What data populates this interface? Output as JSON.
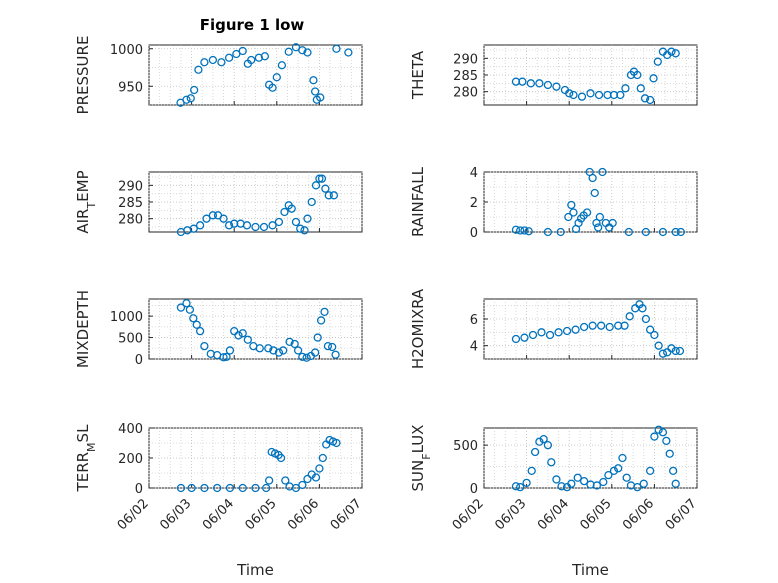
{
  "figure_title": "Figure 1 low",
  "chart_data": [
    {
      "type": "scatter",
      "ylabel": "PRESSURE",
      "ylabel_parts": [
        {
          "t": "PRESSURE"
        }
      ],
      "xlabel": "",
      "title": "Figure 1 low",
      "ylim": [
        925,
        1005
      ],
      "yticks": [
        950,
        1000
      ],
      "xlim": [
        0,
        5
      ],
      "xticks": [
        0,
        1,
        2,
        3,
        4,
        5
      ],
      "xticklabels": [
        "06/02",
        "06/03",
        "06/04",
        "06/05",
        "06/06",
        "06/07"
      ],
      "show_xticklabels": false,
      "color": "#0072bd",
      "points": [
        [
          0.74,
          928
        ],
        [
          0.88,
          932
        ],
        [
          0.98,
          934
        ],
        [
          1.06,
          945
        ],
        [
          1.16,
          972
        ],
        [
          1.3,
          982
        ],
        [
          1.5,
          985
        ],
        [
          1.7,
          982
        ],
        [
          1.88,
          988
        ],
        [
          2.05,
          993
        ],
        [
          2.2,
          997
        ],
        [
          2.32,
          980
        ],
        [
          2.4,
          985
        ],
        [
          2.58,
          988
        ],
        [
          2.72,
          990
        ],
        [
          2.82,
          952
        ],
        [
          2.9,
          948
        ],
        [
          3.0,
          962
        ],
        [
          3.12,
          978
        ],
        [
          3.28,
          996
        ],
        [
          3.45,
          1002
        ],
        [
          3.6,
          998
        ],
        [
          3.72,
          995
        ],
        [
          3.86,
          958
        ],
        [
          3.9,
          943
        ],
        [
          3.94,
          932
        ],
        [
          4.02,
          935
        ],
        [
          4.4,
          1000
        ],
        [
          4.68,
          995
        ]
      ]
    },
    {
      "type": "scatter",
      "ylabel": "THETA",
      "ylabel_parts": [
        {
          "t": "THETA"
        }
      ],
      "xlabel": "",
      "ylim": [
        276,
        294
      ],
      "yticks": [
        280,
        285,
        290
      ],
      "xlim": [
        0,
        5
      ],
      "xticks": [
        0,
        1,
        2,
        3,
        4,
        5
      ],
      "xticklabels": [
        "06/02",
        "06/03",
        "06/04",
        "06/05",
        "06/06",
        "06/07"
      ],
      "show_xticklabels": false,
      "color": "#0072bd",
      "points": [
        [
          0.75,
          283
        ],
        [
          0.9,
          283
        ],
        [
          1.1,
          282.5
        ],
        [
          1.3,
          282.5
        ],
        [
          1.5,
          282
        ],
        [
          1.7,
          281.5
        ],
        [
          1.9,
          280.5
        ],
        [
          2.0,
          279.5
        ],
        [
          2.1,
          279
        ],
        [
          2.3,
          278.5
        ],
        [
          2.5,
          279.5
        ],
        [
          2.7,
          279
        ],
        [
          2.9,
          279
        ],
        [
          3.05,
          279
        ],
        [
          3.2,
          279
        ],
        [
          3.32,
          281
        ],
        [
          3.45,
          285
        ],
        [
          3.52,
          286
        ],
        [
          3.6,
          285
        ],
        [
          3.68,
          281
        ],
        [
          3.78,
          278
        ],
        [
          3.9,
          277.5
        ],
        [
          3.98,
          284
        ],
        [
          4.08,
          289
        ],
        [
          4.2,
          292
        ],
        [
          4.3,
          291
        ],
        [
          4.4,
          292
        ],
        [
          4.5,
          291.5
        ]
      ]
    },
    {
      "type": "scatter",
      "ylabel": "AIR_TEMP",
      "ylabel_parts": [
        {
          "t": "AIR"
        },
        {
          "t": "T",
          "sub": true
        },
        {
          "t": "EMP"
        }
      ],
      "xlabel": "",
      "ylim": [
        276,
        294
      ],
      "yticks": [
        280,
        285,
        290
      ],
      "xlim": [
        0,
        5
      ],
      "xticks": [
        0,
        1,
        2,
        3,
        4,
        5
      ],
      "xticklabels": [
        "06/02",
        "06/03",
        "06/04",
        "06/05",
        "06/06",
        "06/07"
      ],
      "show_xticklabels": false,
      "color": "#0072bd",
      "points": [
        [
          0.75,
          276
        ],
        [
          0.9,
          276.5
        ],
        [
          1.05,
          277
        ],
        [
          1.2,
          278
        ],
        [
          1.35,
          280
        ],
        [
          1.5,
          281
        ],
        [
          1.62,
          281
        ],
        [
          1.75,
          280
        ],
        [
          1.88,
          278
        ],
        [
          2.0,
          278.5
        ],
        [
          2.15,
          278.5
        ],
        [
          2.3,
          278
        ],
        [
          2.5,
          277.5
        ],
        [
          2.7,
          277.5
        ],
        [
          2.9,
          278
        ],
        [
          3.05,
          279
        ],
        [
          3.18,
          282
        ],
        [
          3.28,
          284
        ],
        [
          3.35,
          283
        ],
        [
          3.45,
          279
        ],
        [
          3.55,
          277
        ],
        [
          3.65,
          276.5
        ],
        [
          3.72,
          280
        ],
        [
          3.82,
          285
        ],
        [
          3.92,
          290
        ],
        [
          4.0,
          292
        ],
        [
          4.06,
          292
        ],
        [
          4.14,
          289
        ],
        [
          4.22,
          287
        ],
        [
          4.34,
          287
        ]
      ]
    },
    {
      "type": "scatter",
      "ylabel": "RAINFALL",
      "ylabel_parts": [
        {
          "t": "RAINFALL"
        }
      ],
      "xlabel": "",
      "ylim": [
        0,
        4
      ],
      "yticks": [
        0,
        2,
        4
      ],
      "xlim": [
        0,
        5
      ],
      "xticks": [
        0,
        1,
        2,
        3,
        4,
        5
      ],
      "xticklabels": [
        "06/02",
        "06/03",
        "06/04",
        "06/05",
        "06/06",
        "06/07"
      ],
      "show_xticklabels": false,
      "color": "#0072bd",
      "points": [
        [
          0.75,
          0.15
        ],
        [
          0.85,
          0.1
        ],
        [
          0.95,
          0.1
        ],
        [
          1.05,
          0.05
        ],
        [
          1.5,
          0
        ],
        [
          1.8,
          0
        ],
        [
          1.98,
          1.0
        ],
        [
          2.05,
          1.8
        ],
        [
          2.1,
          1.3
        ],
        [
          2.16,
          0.2
        ],
        [
          2.22,
          0.6
        ],
        [
          2.28,
          0.9
        ],
        [
          2.34,
          1.1
        ],
        [
          2.42,
          1.3
        ],
        [
          2.48,
          4.0
        ],
        [
          2.55,
          3.6
        ],
        [
          2.6,
          2.6
        ],
        [
          2.64,
          0.6
        ],
        [
          2.68,
          0.3
        ],
        [
          2.72,
          1.0
        ],
        [
          2.78,
          4.0
        ],
        [
          2.86,
          0.6
        ],
        [
          2.94,
          0.3
        ],
        [
          3.02,
          0.6
        ],
        [
          3.4,
          0
        ],
        [
          3.8,
          0
        ],
        [
          4.2,
          0
        ],
        [
          4.5,
          0
        ],
        [
          4.62,
          0
        ]
      ]
    },
    {
      "type": "scatter",
      "ylabel": "MIXDEPTH",
      "ylabel_parts": [
        {
          "t": "MIXDEPTH"
        }
      ],
      "xlabel": "",
      "ylim": [
        0,
        1400
      ],
      "yticks": [
        0,
        500,
        1000
      ],
      "xlim": [
        0,
        5
      ],
      "xticks": [
        0,
        1,
        2,
        3,
        4,
        5
      ],
      "xticklabels": [
        "06/02",
        "06/03",
        "06/04",
        "06/05",
        "06/06",
        "06/07"
      ],
      "show_xticklabels": false,
      "color": "#0072bd",
      "points": [
        [
          0.75,
          1200
        ],
        [
          0.88,
          1300
        ],
        [
          0.96,
          1150
        ],
        [
          1.04,
          950
        ],
        [
          1.12,
          800
        ],
        [
          1.2,
          650
        ],
        [
          1.3,
          300
        ],
        [
          1.45,
          120
        ],
        [
          1.6,
          90
        ],
        [
          1.75,
          40
        ],
        [
          1.82,
          50
        ],
        [
          1.9,
          200
        ],
        [
          2.0,
          650
        ],
        [
          2.1,
          550
        ],
        [
          2.2,
          600
        ],
        [
          2.32,
          450
        ],
        [
          2.45,
          300
        ],
        [
          2.6,
          250
        ],
        [
          2.8,
          250
        ],
        [
          2.92,
          200
        ],
        [
          3.05,
          150
        ],
        [
          3.15,
          200
        ],
        [
          3.3,
          400
        ],
        [
          3.42,
          350
        ],
        [
          3.5,
          200
        ],
        [
          3.6,
          50
        ],
        [
          3.7,
          30
        ],
        [
          3.8,
          70
        ],
        [
          3.9,
          150
        ],
        [
          3.96,
          500
        ],
        [
          4.04,
          900
        ],
        [
          4.12,
          1100
        ],
        [
          4.2,
          300
        ],
        [
          4.3,
          280
        ],
        [
          4.38,
          100
        ]
      ]
    },
    {
      "type": "scatter",
      "ylabel": "H2OMIXRA",
      "ylabel_parts": [
        {
          "t": "H2OMIXRA"
        }
      ],
      "xlabel": "",
      "ylim": [
        3,
        7.5
      ],
      "yticks": [
        4,
        6
      ],
      "xlim": [
        0,
        5
      ],
      "xticks": [
        0,
        1,
        2,
        3,
        4,
        5
      ],
      "xticklabels": [
        "06/02",
        "06/03",
        "06/04",
        "06/05",
        "06/06",
        "06/07"
      ],
      "show_xticklabels": false,
      "color": "#0072bd",
      "points": [
        [
          0.75,
          4.5
        ],
        [
          0.95,
          4.6
        ],
        [
          1.15,
          4.8
        ],
        [
          1.35,
          5.0
        ],
        [
          1.55,
          4.8
        ],
        [
          1.75,
          5.0
        ],
        [
          1.95,
          5.1
        ],
        [
          2.15,
          5.2
        ],
        [
          2.35,
          5.4
        ],
        [
          2.55,
          5.5
        ],
        [
          2.75,
          5.5
        ],
        [
          2.95,
          5.4
        ],
        [
          3.15,
          5.5
        ],
        [
          3.3,
          5.5
        ],
        [
          3.42,
          6.2
        ],
        [
          3.55,
          6.8
        ],
        [
          3.65,
          7.1
        ],
        [
          3.72,
          6.8
        ],
        [
          3.8,
          6.0
        ],
        [
          3.9,
          5.2
        ],
        [
          4.0,
          4.8
        ],
        [
          4.1,
          4.0
        ],
        [
          4.2,
          3.4
        ],
        [
          4.3,
          3.5
        ],
        [
          4.4,
          3.8
        ],
        [
          4.5,
          3.6
        ],
        [
          4.6,
          3.6
        ]
      ]
    },
    {
      "type": "scatter",
      "ylabel": "TERR_MSL",
      "ylabel_parts": [
        {
          "t": "TERR"
        },
        {
          "t": "M",
          "sub": true
        },
        {
          "t": "SL"
        }
      ],
      "xlabel": "Time",
      "ylim": [
        0,
        400
      ],
      "yticks": [
        0,
        200,
        400
      ],
      "xlim": [
        0,
        5
      ],
      "xticks": [
        0,
        1,
        2,
        3,
        4,
        5
      ],
      "xticklabels": [
        "06/02",
        "06/03",
        "06/04",
        "06/05",
        "06/06",
        "06/07"
      ],
      "show_xticklabels": true,
      "color": "#0072bd",
      "points": [
        [
          0.75,
          0
        ],
        [
          1.0,
          0
        ],
        [
          1.3,
          0
        ],
        [
          1.6,
          0
        ],
        [
          1.9,
          0
        ],
        [
          2.2,
          0
        ],
        [
          2.5,
          0
        ],
        [
          2.75,
          0
        ],
        [
          2.82,
          50
        ],
        [
          2.88,
          240
        ],
        [
          2.96,
          230
        ],
        [
          3.04,
          220
        ],
        [
          3.1,
          200
        ],
        [
          3.2,
          50
        ],
        [
          3.3,
          10
        ],
        [
          3.45,
          0
        ],
        [
          3.6,
          20
        ],
        [
          3.72,
          60
        ],
        [
          3.82,
          90
        ],
        [
          3.92,
          70
        ],
        [
          4.0,
          130
        ],
        [
          4.08,
          200
        ],
        [
          4.16,
          290
        ],
        [
          4.24,
          320
        ],
        [
          4.32,
          310
        ],
        [
          4.4,
          300
        ]
      ]
    },
    {
      "type": "scatter",
      "ylabel": "SUN_FLUX",
      "ylabel_parts": [
        {
          "t": "SUN"
        },
        {
          "t": "F",
          "sub": true
        },
        {
          "t": "LUX"
        }
      ],
      "xlabel": "Time",
      "ylim": [
        0,
        700
      ],
      "yticks": [
        0,
        500
      ],
      "xlim": [
        0,
        5
      ],
      "xticks": [
        0,
        1,
        2,
        3,
        4,
        5
      ],
      "xticklabels": [
        "06/02",
        "06/03",
        "06/04",
        "06/05",
        "06/06",
        "06/07"
      ],
      "show_xticklabels": true,
      "color": "#0072bd",
      "points": [
        [
          0.75,
          20
        ],
        [
          0.85,
          10
        ],
        [
          1.0,
          60
        ],
        [
          1.12,
          200
        ],
        [
          1.2,
          420
        ],
        [
          1.3,
          540
        ],
        [
          1.4,
          570
        ],
        [
          1.5,
          500
        ],
        [
          1.58,
          300
        ],
        [
          1.7,
          100
        ],
        [
          1.82,
          20
        ],
        [
          1.95,
          10
        ],
        [
          2.05,
          50
        ],
        [
          2.2,
          120
        ],
        [
          2.35,
          80
        ],
        [
          2.5,
          40
        ],
        [
          2.65,
          30
        ],
        [
          2.8,
          70
        ],
        [
          2.92,
          150
        ],
        [
          3.05,
          200
        ],
        [
          3.15,
          230
        ],
        [
          3.25,
          350
        ],
        [
          3.35,
          120
        ],
        [
          3.45,
          30
        ],
        [
          3.6,
          10
        ],
        [
          3.75,
          50
        ],
        [
          3.9,
          200
        ],
        [
          4.0,
          600
        ],
        [
          4.1,
          680
        ],
        [
          4.2,
          650
        ],
        [
          4.28,
          550
        ],
        [
          4.36,
          400
        ],
        [
          4.44,
          200
        ],
        [
          4.5,
          50
        ]
      ]
    }
  ]
}
